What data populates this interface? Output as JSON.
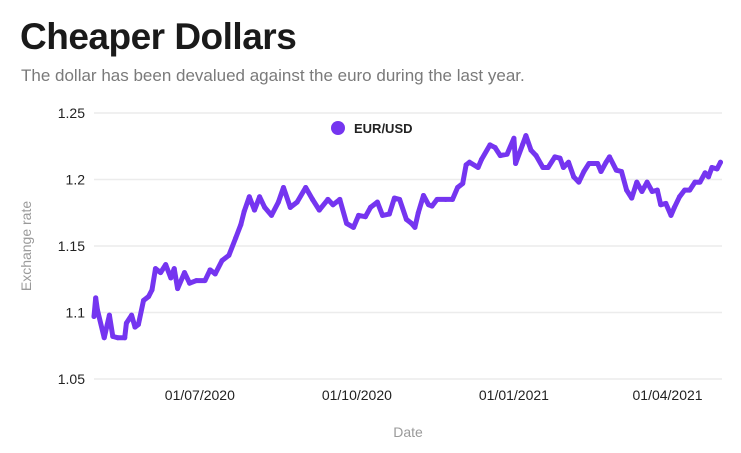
{
  "chart_data": {
    "type": "line",
    "title": "Cheaper Dollars",
    "subtitle": "The dollar has been devalued against the euro during the last year.",
    "xlabel": "Date",
    "ylabel": "Exchange rate",
    "x_unit": "days since 2020-04-30",
    "ylim": [
      1.05,
      1.25
    ],
    "xlim": [
      0,
      368
    ],
    "yticks": [
      {
        "value": 1.05,
        "label": "1.05"
      },
      {
        "value": 1.1,
        "label": "1.1"
      },
      {
        "value": 1.15,
        "label": "1.15"
      },
      {
        "value": 1.2,
        "label": "1.2"
      },
      {
        "value": 1.25,
        "label": "1.25"
      }
    ],
    "xticks": [
      {
        "value": 62,
        "label": "01/07/2020"
      },
      {
        "value": 154,
        "label": "01/10/2020"
      },
      {
        "value": 246,
        "label": "01/01/2021"
      },
      {
        "value": 336,
        "label": "01/04/2021"
      }
    ],
    "grid": true,
    "legend_position": "top-center",
    "series": [
      {
        "name": "EUR/USD",
        "color": "#7535f0",
        "x": [
          0,
          1,
          2,
          6,
          9,
          11,
          14,
          18,
          19,
          22,
          24,
          26,
          29,
          32,
          34,
          36,
          39,
          42,
          45,
          47,
          49,
          53,
          56,
          60,
          65,
          68,
          71,
          75,
          79,
          83,
          86,
          88,
          91,
          94,
          97,
          100,
          104,
          108,
          111,
          115,
          119,
          124,
          128,
          132,
          137,
          140,
          144,
          148,
          152,
          155,
          159,
          162,
          166,
          169,
          173,
          176,
          179,
          183,
          186,
          188,
          190,
          193,
          196,
          198,
          201,
          206,
          210,
          213,
          216,
          218,
          220,
          225,
          227,
          232,
          235,
          238,
          242,
          246,
          247,
          251,
          253,
          256,
          259,
          263,
          266,
          270,
          273,
          275,
          278,
          281,
          284,
          287,
          290,
          295,
          297,
          300,
          302,
          306,
          309,
          312,
          315,
          318,
          321,
          324,
          327,
          330,
          332,
          335,
          338,
          340,
          343,
          346,
          349,
          352,
          355,
          358,
          360,
          362,
          365,
          367
        ],
        "values": [
          1.097,
          1.111,
          1.102,
          1.081,
          1.098,
          1.082,
          1.081,
          1.081,
          1.092,
          1.098,
          1.089,
          1.091,
          1.109,
          1.112,
          1.117,
          1.133,
          1.13,
          1.136,
          1.126,
          1.133,
          1.118,
          1.13,
          1.122,
          1.124,
          1.124,
          1.132,
          1.129,
          1.139,
          1.143,
          1.156,
          1.166,
          1.176,
          1.187,
          1.177,
          1.187,
          1.179,
          1.173,
          1.183,
          1.194,
          1.179,
          1.183,
          1.194,
          1.185,
          1.177,
          1.185,
          1.181,
          1.185,
          1.167,
          1.164,
          1.173,
          1.172,
          1.179,
          1.183,
          1.173,
          1.174,
          1.186,
          1.185,
          1.17,
          1.167,
          1.164,
          1.175,
          1.188,
          1.181,
          1.18,
          1.185,
          1.185,
          1.185,
          1.194,
          1.197,
          1.211,
          1.213,
          1.209,
          1.215,
          1.226,
          1.224,
          1.218,
          1.219,
          1.231,
          1.212,
          1.226,
          1.233,
          1.222,
          1.218,
          1.209,
          1.209,
          1.217,
          1.216,
          1.209,
          1.213,
          1.202,
          1.198,
          1.206,
          1.212,
          1.212,
          1.206,
          1.213,
          1.217,
          1.207,
          1.206,
          1.192,
          1.186,
          1.198,
          1.191,
          1.198,
          1.191,
          1.192,
          1.181,
          1.182,
          1.173,
          1.179,
          1.187,
          1.192,
          1.192,
          1.198,
          1.198,
          1.205,
          1.202,
          1.209,
          1.208,
          1.213
        ]
      }
    ]
  }
}
